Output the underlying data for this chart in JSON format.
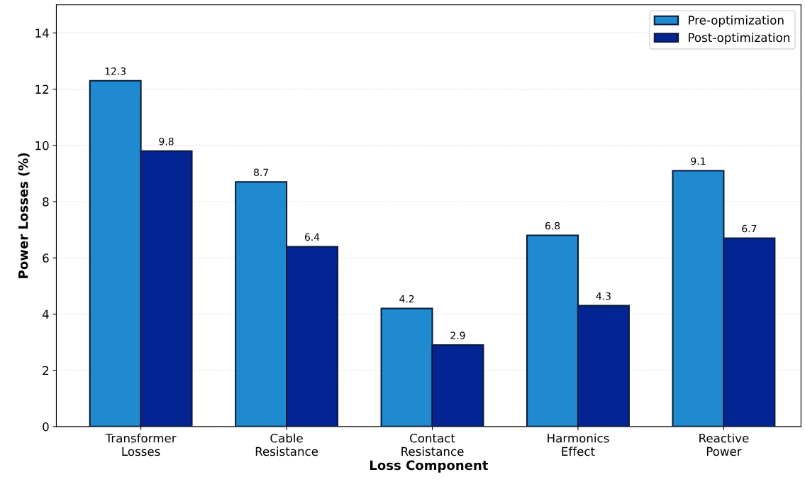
{
  "chart_data": {
    "type": "bar",
    "xlabel": "Loss Component",
    "ylabel": "Power Losses (%)",
    "categories": [
      "Transformer\nLosses",
      "Cable\nResistance",
      "Contact\nResistance",
      "Harmonics\nEffect",
      "Reactive\nPower"
    ],
    "series": [
      {
        "name": "Pre-optimization",
        "color": "#1f8ad0",
        "values": [
          12.3,
          8.7,
          4.2,
          6.8,
          9.1
        ]
      },
      {
        "name": "Post-optimization",
        "color": "#032594",
        "values": [
          9.8,
          6.4,
          2.9,
          4.3,
          6.7
        ]
      }
    ],
    "ylim": [
      0,
      15
    ],
    "yticks": [
      0,
      2,
      4,
      6,
      8,
      10,
      12,
      14
    ],
    "grid": "y",
    "legend": "top right",
    "data_labels": true
  }
}
